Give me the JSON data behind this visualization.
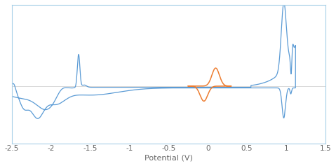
{
  "title": "",
  "xlabel": "Potential (V)",
  "ylabel": "",
  "xlim": [
    -2.5,
    1.5
  ],
  "blue_color": "#5B9BD5",
  "orange_color": "#ED7D31",
  "bg_color": "#FFFFFF",
  "border_color": "#A8D0E8",
  "xlabel_fontsize": 8,
  "tick_fontsize": 7.5,
  "xticks": [
    -2.5,
    -2.0,
    -1.5,
    -1.0,
    -0.5,
    0.0,
    0.5,
    1.0,
    1.5
  ]
}
